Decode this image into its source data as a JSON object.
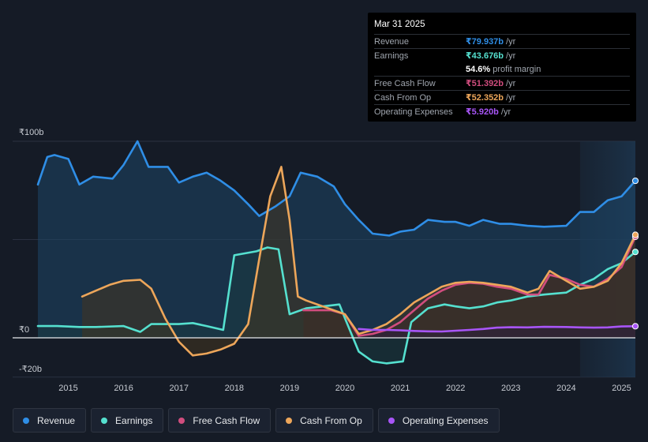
{
  "tooltip": {
    "date": "Mar 31 2025",
    "rows": [
      {
        "label": "Revenue",
        "value": "₹79.937b",
        "unit": "/yr",
        "color": "#2f8ee6"
      },
      {
        "label": "Earnings",
        "value": "₹43.676b",
        "unit": "/yr",
        "color": "#55e0cf"
      },
      {
        "label": "",
        "value": "54.6%",
        "unit": "profit margin",
        "color": "#ffffff"
      },
      {
        "label": "Free Cash Flow",
        "value": "₹51.392b",
        "unit": "/yr",
        "color": "#d14d7e"
      },
      {
        "label": "Cash From Op",
        "value": "₹52.352b",
        "unit": "/yr",
        "color": "#eda65a"
      },
      {
        "label": "Operating Expenses",
        "value": "₹5.920b",
        "unit": "/yr",
        "color": "#a855f7"
      }
    ]
  },
  "legend": {
    "items": [
      {
        "label": "Revenue",
        "color": "#2f8ee6"
      },
      {
        "label": "Earnings",
        "color": "#55e0cf"
      },
      {
        "label": "Free Cash Flow",
        "color": "#d14d7e"
      },
      {
        "label": "Cash From Op",
        "color": "#eda65a"
      },
      {
        "label": "Operating Expenses",
        "color": "#a855f7"
      }
    ]
  },
  "chart_data": {
    "type": "area",
    "y_unit": "₹ billions",
    "ylim": [
      -20,
      100
    ],
    "y_ticks": [
      {
        "value": 100,
        "label": "₹100b"
      },
      {
        "value": 0,
        "label": "₹0"
      },
      {
        "value": -20,
        "label": "-₹20b"
      }
    ],
    "x_ticks": [
      "2015",
      "2016",
      "2017",
      "2018",
      "2019",
      "2020",
      "2021",
      "2022",
      "2023",
      "2024",
      "2025"
    ],
    "xlim": [
      2014.45,
      2025.25
    ],
    "highlight_start": 2024.25,
    "grid": true,
    "series": [
      {
        "name": "Revenue",
        "color": "#2f8ee6",
        "fill": "#1d4566",
        "points": [
          [
            2014.45,
            78
          ],
          [
            2014.62,
            92
          ],
          [
            2014.75,
            93
          ],
          [
            2015.0,
            91
          ],
          [
            2015.2,
            78
          ],
          [
            2015.45,
            82
          ],
          [
            2015.8,
            81
          ],
          [
            2016.0,
            88
          ],
          [
            2016.25,
            100
          ],
          [
            2016.45,
            87
          ],
          [
            2016.8,
            87
          ],
          [
            2017.0,
            79
          ],
          [
            2017.25,
            82
          ],
          [
            2017.5,
            84
          ],
          [
            2017.75,
            80
          ],
          [
            2018.0,
            75
          ],
          [
            2018.25,
            68
          ],
          [
            2018.45,
            62
          ],
          [
            2018.75,
            67
          ],
          [
            2019.0,
            72
          ],
          [
            2019.2,
            84
          ],
          [
            2019.5,
            82
          ],
          [
            2019.8,
            77
          ],
          [
            2020.0,
            68
          ],
          [
            2020.25,
            60
          ],
          [
            2020.5,
            53
          ],
          [
            2020.8,
            52
          ],
          [
            2021.0,
            54
          ],
          [
            2021.25,
            55
          ],
          [
            2021.5,
            60
          ],
          [
            2021.8,
            59
          ],
          [
            2022.0,
            59
          ],
          [
            2022.25,
            57
          ],
          [
            2022.5,
            60
          ],
          [
            2022.8,
            58
          ],
          [
            2023.0,
            58
          ],
          [
            2023.3,
            57
          ],
          [
            2023.6,
            56.5
          ],
          [
            2024.0,
            57
          ],
          [
            2024.25,
            64
          ],
          [
            2024.5,
            64
          ],
          [
            2024.75,
            70
          ],
          [
            2025.0,
            72
          ],
          [
            2025.25,
            79.9
          ]
        ]
      },
      {
        "name": "Earnings",
        "color": "#55e0cf",
        "fill": "#1a3b3f",
        "points": [
          [
            2014.45,
            6
          ],
          [
            2014.8,
            6
          ],
          [
            2015.2,
            5.5
          ],
          [
            2015.5,
            5.5
          ],
          [
            2016.0,
            6
          ],
          [
            2016.3,
            3
          ],
          [
            2016.5,
            7
          ],
          [
            2017.0,
            7
          ],
          [
            2017.25,
            7.5
          ],
          [
            2017.5,
            6
          ],
          [
            2017.8,
            4
          ],
          [
            2018.0,
            42
          ],
          [
            2018.4,
            44
          ],
          [
            2018.6,
            46
          ],
          [
            2018.8,
            45
          ],
          [
            2019.0,
            12
          ],
          [
            2019.3,
            15
          ],
          [
            2019.6,
            16
          ],
          [
            2019.9,
            17
          ],
          [
            2020.0,
            10
          ],
          [
            2020.25,
            -7
          ],
          [
            2020.5,
            -12
          ],
          [
            2020.75,
            -13
          ],
          [
            2021.05,
            -12
          ],
          [
            2021.2,
            8
          ],
          [
            2021.5,
            15
          ],
          [
            2021.8,
            17
          ],
          [
            2022.0,
            16
          ],
          [
            2022.25,
            15
          ],
          [
            2022.5,
            16
          ],
          [
            2022.75,
            18
          ],
          [
            2023.0,
            19
          ],
          [
            2023.3,
            21
          ],
          [
            2023.6,
            22
          ],
          [
            2024.0,
            23
          ],
          [
            2024.25,
            27
          ],
          [
            2024.5,
            30
          ],
          [
            2024.75,
            35
          ],
          [
            2025.0,
            38
          ],
          [
            2025.25,
            43.7
          ]
        ]
      },
      {
        "name": "Free Cash Flow",
        "color": "#d14d7e",
        "fill": "#3a1d2e",
        "points": [
          [
            2019.25,
            14
          ],
          [
            2019.5,
            14
          ],
          [
            2019.75,
            14
          ],
          [
            2020.0,
            12
          ],
          [
            2020.25,
            1
          ],
          [
            2020.5,
            2
          ],
          [
            2020.75,
            4
          ],
          [
            2021.0,
            8
          ],
          [
            2021.25,
            14
          ],
          [
            2021.5,
            20
          ],
          [
            2021.75,
            24
          ],
          [
            2022.0,
            27
          ],
          [
            2022.25,
            28
          ],
          [
            2022.5,
            27.5
          ],
          [
            2022.75,
            26
          ],
          [
            2023.0,
            25
          ],
          [
            2023.3,
            22
          ],
          [
            2023.5,
            22
          ],
          [
            2023.7,
            32
          ],
          [
            2024.0,
            30
          ],
          [
            2024.25,
            27
          ],
          [
            2024.5,
            26
          ],
          [
            2024.75,
            30
          ],
          [
            2025.0,
            36
          ],
          [
            2025.25,
            51.4
          ]
        ]
      },
      {
        "name": "Cash From Op",
        "color": "#eda65a",
        "fill": "#44351f",
        "points": [
          [
            2015.25,
            21
          ],
          [
            2015.5,
            24
          ],
          [
            2015.75,
            27
          ],
          [
            2016.0,
            29
          ],
          [
            2016.3,
            29.5
          ],
          [
            2016.5,
            25
          ],
          [
            2016.75,
            10
          ],
          [
            2017.0,
            -2
          ],
          [
            2017.25,
            -9
          ],
          [
            2017.5,
            -8
          ],
          [
            2017.75,
            -6
          ],
          [
            2018.0,
            -3
          ],
          [
            2018.25,
            7
          ],
          [
            2018.45,
            40
          ],
          [
            2018.65,
            72
          ],
          [
            2018.85,
            87
          ],
          [
            2019.0,
            60
          ],
          [
            2019.15,
            21
          ],
          [
            2019.3,
            19
          ],
          [
            2019.6,
            16
          ],
          [
            2019.9,
            13
          ],
          [
            2020.0,
            12
          ],
          [
            2020.25,
            2
          ],
          [
            2020.5,
            4
          ],
          [
            2020.75,
            7
          ],
          [
            2021.0,
            12
          ],
          [
            2021.25,
            18
          ],
          [
            2021.5,
            22
          ],
          [
            2021.75,
            26
          ],
          [
            2022.0,
            28
          ],
          [
            2022.25,
            28.5
          ],
          [
            2022.5,
            28
          ],
          [
            2022.75,
            27
          ],
          [
            2023.0,
            26
          ],
          [
            2023.3,
            23
          ],
          [
            2023.5,
            25
          ],
          [
            2023.7,
            34
          ],
          [
            2024.0,
            29
          ],
          [
            2024.25,
            25
          ],
          [
            2024.5,
            26
          ],
          [
            2024.75,
            29
          ],
          [
            2025.0,
            38
          ],
          [
            2025.25,
            52.4
          ]
        ]
      },
      {
        "name": "Operating Expenses",
        "color": "#a855f7",
        "fill": "#2a1d3e",
        "points": [
          [
            2020.25,
            4.5
          ],
          [
            2020.5,
            4
          ],
          [
            2020.75,
            4
          ],
          [
            2021.0,
            3.8
          ],
          [
            2021.25,
            3.5
          ],
          [
            2021.5,
            3.3
          ],
          [
            2021.75,
            3.2
          ],
          [
            2022.0,
            3.6
          ],
          [
            2022.25,
            4
          ],
          [
            2022.5,
            4.5
          ],
          [
            2022.75,
            5.2
          ],
          [
            2023.0,
            5.4
          ],
          [
            2023.3,
            5.3
          ],
          [
            2023.6,
            5.6
          ],
          [
            2024.0,
            5.5
          ],
          [
            2024.25,
            5.3
          ],
          [
            2024.5,
            5.2
          ],
          [
            2024.75,
            5.3
          ],
          [
            2025.0,
            5.8
          ],
          [
            2025.25,
            5.9
          ]
        ]
      }
    ]
  }
}
